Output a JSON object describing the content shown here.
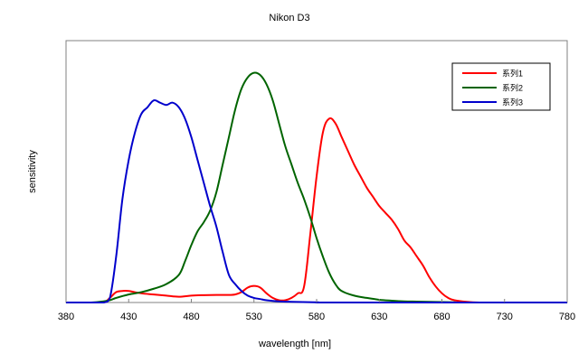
{
  "chart_data": {
    "type": "line",
    "title": "Nikon D3",
    "xlabel": "wavelength [nm]",
    "ylabel": "sensitivity",
    "xlim": [
      380,
      780
    ],
    "ylim": [
      0,
      1.14
    ],
    "xticks": [
      380,
      430,
      480,
      530,
      580,
      630,
      680,
      730,
      780
    ],
    "yticks": [],
    "grid": false,
    "legend_position": "top-right",
    "series": [
      {
        "name": "系列1",
        "color": "#ff0000",
        "x": [
          380,
          400,
          410,
          415,
          420,
          425,
          430,
          440,
          450,
          460,
          470,
          480,
          490,
          500,
          510,
          515,
          520,
          525,
          530,
          535,
          540,
          545,
          550,
          555,
          560,
          565,
          570,
          575,
          580,
          585,
          590,
          595,
          600,
          605,
          610,
          615,
          620,
          625,
          630,
          635,
          640,
          645,
          650,
          655,
          660,
          665,
          670,
          675,
          680,
          685,
          690,
          700,
          710,
          720,
          780
        ],
        "y": [
          0,
          0,
          0,
          0.02,
          0.045,
          0.05,
          0.05,
          0.04,
          0.035,
          0.03,
          0.025,
          0.03,
          0.032,
          0.033,
          0.033,
          0.035,
          0.045,
          0.065,
          0.072,
          0.065,
          0.04,
          0.02,
          0.01,
          0.01,
          0.02,
          0.04,
          0.07,
          0.3,
          0.55,
          0.74,
          0.8,
          0.78,
          0.72,
          0.66,
          0.6,
          0.55,
          0.5,
          0.46,
          0.42,
          0.39,
          0.36,
          0.32,
          0.27,
          0.24,
          0.2,
          0.16,
          0.11,
          0.07,
          0.04,
          0.02,
          0.01,
          0.003,
          0,
          0,
          0
        ]
      },
      {
        "name": "系列2",
        "color": "#006400",
        "x": [
          380,
          400,
          410,
          415,
          420,
          430,
          440,
          450,
          460,
          470,
          475,
          480,
          485,
          490,
          495,
          500,
          505,
          510,
          515,
          520,
          525,
          530,
          535,
          540,
          545,
          550,
          555,
          560,
          565,
          570,
          575,
          580,
          585,
          590,
          595,
          600,
          610,
          620,
          630,
          640,
          650,
          660,
          670,
          680,
          690,
          700,
          780
        ],
        "y": [
          0,
          0,
          0.005,
          0.01,
          0.02,
          0.035,
          0.045,
          0.06,
          0.08,
          0.12,
          0.18,
          0.25,
          0.31,
          0.35,
          0.4,
          0.48,
          0.6,
          0.72,
          0.84,
          0.93,
          0.98,
          1.0,
          0.99,
          0.95,
          0.88,
          0.78,
          0.68,
          0.6,
          0.52,
          0.45,
          0.37,
          0.28,
          0.2,
          0.13,
          0.08,
          0.05,
          0.03,
          0.02,
          0.012,
          0.008,
          0.005,
          0.004,
          0.003,
          0.002,
          0.001,
          0,
          0
        ]
      },
      {
        "name": "系列3",
        "color": "#0000cc",
        "x": [
          380,
          400,
          410,
          415,
          420,
          425,
          430,
          435,
          440,
          445,
          450,
          455,
          460,
          465,
          470,
          475,
          480,
          485,
          490,
          495,
          500,
          505,
          510,
          515,
          520,
          525,
          530,
          535,
          540,
          550,
          560,
          580,
          600,
          780
        ],
        "y": [
          0,
          0,
          0,
          0.02,
          0.2,
          0.45,
          0.62,
          0.74,
          0.82,
          0.85,
          0.88,
          0.87,
          0.86,
          0.87,
          0.85,
          0.8,
          0.72,
          0.62,
          0.52,
          0.42,
          0.33,
          0.22,
          0.12,
          0.08,
          0.05,
          0.03,
          0.02,
          0.015,
          0.01,
          0.005,
          0.003,
          0.001,
          0,
          0
        ]
      }
    ]
  }
}
